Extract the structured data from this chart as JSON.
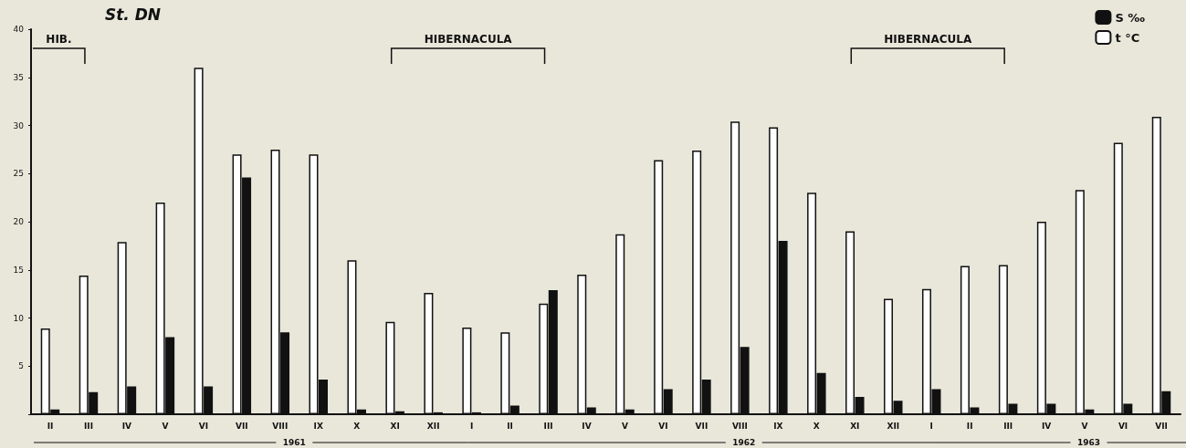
{
  "chart_data": {
    "type": "bar",
    "title": "St. DN",
    "categories": [
      "II",
      "III",
      "IV",
      "V",
      "VI",
      "VII",
      "VIII",
      "IX",
      "X",
      "XI",
      "XII",
      "I",
      "II",
      "III",
      "IV",
      "V",
      "VI",
      "VII",
      "VIII",
      "IX",
      "X",
      "XI",
      "XII",
      "I",
      "II",
      "III",
      "IV",
      "V",
      "VI",
      "VII"
    ],
    "series": [
      {
        "name": "t °C",
        "color": "#ffffff",
        "values": [
          8.9,
          14.4,
          17.9,
          22,
          36,
          27,
          27.5,
          27,
          16,
          9.6,
          12.6,
          9,
          8.5,
          11.5,
          14.5,
          18.7,
          26.4,
          27.4,
          30.4,
          29.8,
          23,
          19,
          12,
          13,
          15.4,
          15.5,
          20,
          23.3,
          28.2,
          30.9
        ]
      },
      {
        "name": "S ‰",
        "color": "#111111",
        "values": [
          0.5,
          2.3,
          2.9,
          8,
          2.9,
          24.6,
          8.5,
          3.6,
          0.5,
          0.3,
          0.2,
          0.2,
          0.9,
          12.9,
          0.7,
          0.5,
          2.6,
          3.6,
          7,
          18,
          4.3,
          1.8,
          1.4,
          2.6,
          0.7,
          1.1,
          1.1,
          0.5,
          1.1,
          2.4
        ]
      }
    ],
    "ylim": [
      0,
      40
    ],
    "yticks": [
      {
        "value": 0,
        "label": null
      },
      5,
      10,
      15,
      20,
      25,
      30,
      35,
      40
    ],
    "grid": false,
    "legend": "top right",
    "annotations": [
      "HIB.",
      "HIBERNACULA",
      "HIBERNACULA",
      "1961",
      "1962",
      "1963"
    ]
  }
}
